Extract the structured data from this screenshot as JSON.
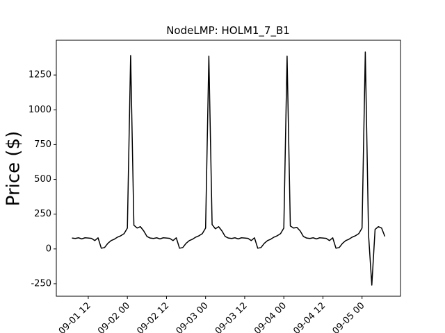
{
  "chart_data": {
    "type": "line",
    "title": "NodeLMP: HOLM1_7_B1",
    "ylabel": "Price ($)",
    "color": "#000000",
    "x": [
      7,
      8,
      9,
      10,
      11,
      12,
      13,
      14,
      15,
      16,
      17,
      18,
      19,
      20,
      21,
      22,
      23,
      24,
      25,
      26,
      27,
      28,
      29,
      30,
      31,
      32,
      33,
      34,
      35,
      36,
      37,
      38,
      39,
      40,
      41,
      42,
      43,
      44,
      45,
      46,
      47,
      48,
      49,
      50,
      51,
      52,
      53,
      54,
      55,
      56,
      57,
      58,
      59,
      60,
      61,
      62,
      63,
      64,
      65,
      66,
      67,
      68,
      69,
      70,
      71,
      72,
      73,
      74,
      75,
      76,
      77,
      78,
      79,
      80,
      81,
      82,
      83,
      84,
      85,
      86,
      87,
      88,
      89,
      90,
      91,
      92,
      93,
      94,
      95,
      96,
      97,
      98,
      99,
      100,
      101,
      102,
      103
    ],
    "values": [
      78,
      75,
      80,
      72,
      80,
      78,
      76,
      60,
      80,
      5,
      10,
      40,
      60,
      70,
      85,
      95,
      110,
      150,
      1390,
      170,
      150,
      160,
      130,
      90,
      78,
      75,
      80,
      72,
      80,
      78,
      76,
      60,
      80,
      5,
      10,
      40,
      60,
      70,
      85,
      95,
      110,
      150,
      1385,
      175,
      145,
      160,
      130,
      90,
      78,
      75,
      80,
      72,
      80,
      78,
      76,
      60,
      80,
      5,
      10,
      40,
      60,
      70,
      85,
      95,
      110,
      150,
      1385,
      165,
      150,
      155,
      130,
      90,
      78,
      75,
      80,
      72,
      80,
      78,
      76,
      60,
      80,
      5,
      10,
      40,
      60,
      70,
      85,
      95,
      110,
      150,
      1415,
      100,
      -260,
      140,
      160,
      150,
      90
    ],
    "xlim": [
      2.2,
      107.8
    ],
    "xticks": [
      {
        "value": 12,
        "label": "09-01 12"
      },
      {
        "value": 24,
        "label": "09-02 00"
      },
      {
        "value": 36,
        "label": "09-02 12"
      },
      {
        "value": 48,
        "label": "09-03 00"
      },
      {
        "value": 60,
        "label": "09-03 12"
      },
      {
        "value": 72,
        "label": "09-04 00"
      },
      {
        "value": 84,
        "label": "09-04 12"
      },
      {
        "value": 96,
        "label": "09-05 00"
      }
    ],
    "ylim": [
      -340,
      1500
    ],
    "yticks": [
      -250,
      0,
      250,
      500,
      750,
      1000,
      1250
    ]
  }
}
